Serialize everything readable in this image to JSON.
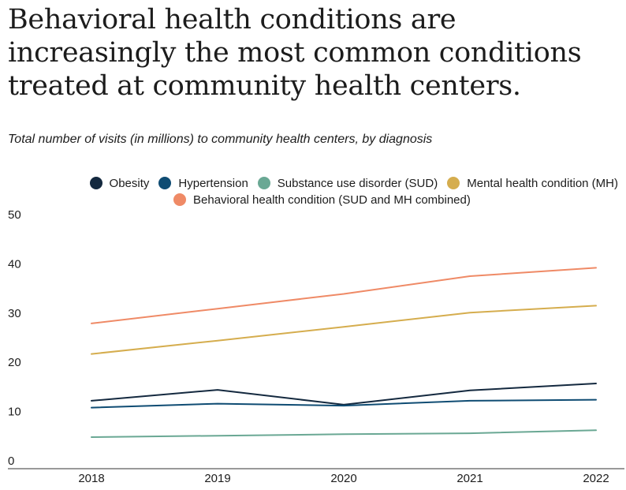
{
  "title": "Behavioral health conditions are increasingly the most common conditions treated at community health centers.",
  "subtitle": "Total number of visits (in millions) to community health centers, by diagnosis",
  "chart_data": {
    "type": "line",
    "title": "Behavioral health conditions are increasingly the most common conditions treated at community health centers.",
    "subtitle": "Total number of visits (in millions) to community health centers, by diagnosis",
    "xlabel": "",
    "ylabel": "",
    "x": [
      "2018",
      "2019",
      "2020",
      "2021",
      "2022"
    ],
    "ylim": [
      0,
      50
    ],
    "yticks": [
      0,
      10,
      20,
      30,
      40,
      50
    ],
    "grid": false,
    "legend_position": "top",
    "series": [
      {
        "name": "Obesity",
        "color": "#14293f",
        "values": [
          12.2,
          14.4,
          11.4,
          14.3,
          15.7
        ]
      },
      {
        "name": "Hypertension",
        "color": "#0f4c73",
        "values": [
          10.8,
          11.6,
          11.2,
          12.2,
          12.4
        ]
      },
      {
        "name": "Substance use disorder (SUD)",
        "color": "#6aa894",
        "values": [
          4.8,
          5.1,
          5.4,
          5.6,
          6.2
        ]
      },
      {
        "name": "Mental health condition (MH)",
        "color": "#d5ad4e",
        "values": [
          21.7,
          24.4,
          27.2,
          30.1,
          31.5
        ]
      },
      {
        "name": "Behavioral health condition (SUD and MH combined)",
        "color": "#ef8a66",
        "values": [
          27.9,
          30.9,
          33.9,
          37.5,
          39.2
        ]
      }
    ]
  }
}
